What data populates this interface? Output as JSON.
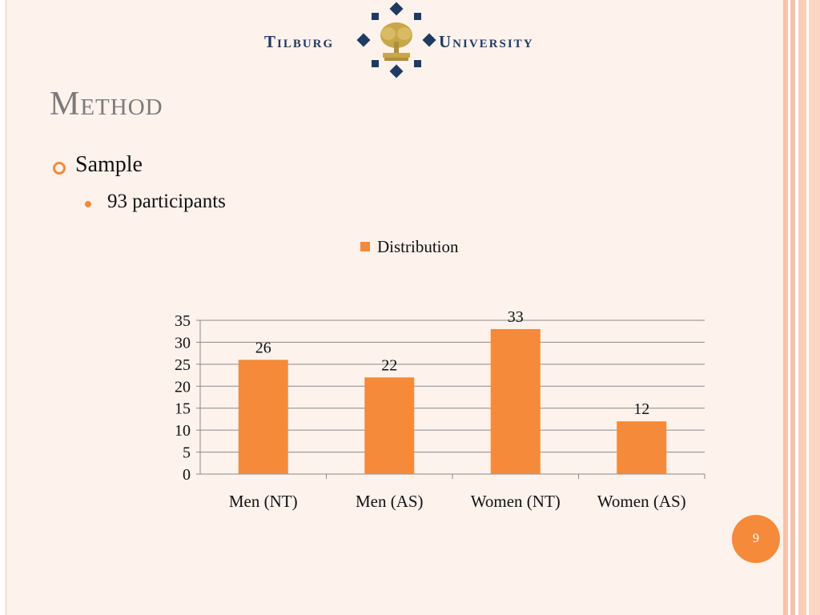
{
  "logo": {
    "left_text": "Tilburg",
    "right_text": "University"
  },
  "slide": {
    "title": "Method",
    "bullets": [
      {
        "text": "Sample",
        "level": 1
      },
      {
        "text": "93 participants",
        "level": 2
      }
    ],
    "page_number": "9"
  },
  "colors": {
    "accent": "#f58a3a",
    "title": "#7a7a7a",
    "logo_navy": "#1f3b63",
    "logo_gold": "#c8a64a"
  },
  "chart_data": {
    "type": "bar",
    "categories": [
      "Men (NT)",
      "Men (AS)",
      "Women (NT)",
      "Women (AS)"
    ],
    "series": [
      {
        "name": "Distribution",
        "values": [
          26,
          22,
          33,
          12
        ],
        "color": "#f58a3a"
      }
    ],
    "data_labels": [
      "26",
      "22",
      "33",
      "12"
    ],
    "yticks": [
      "0",
      "5",
      "10",
      "15",
      "20",
      "25",
      "30",
      "35"
    ],
    "ylim": [
      0,
      35
    ],
    "grid": true,
    "legend_position": "top"
  }
}
